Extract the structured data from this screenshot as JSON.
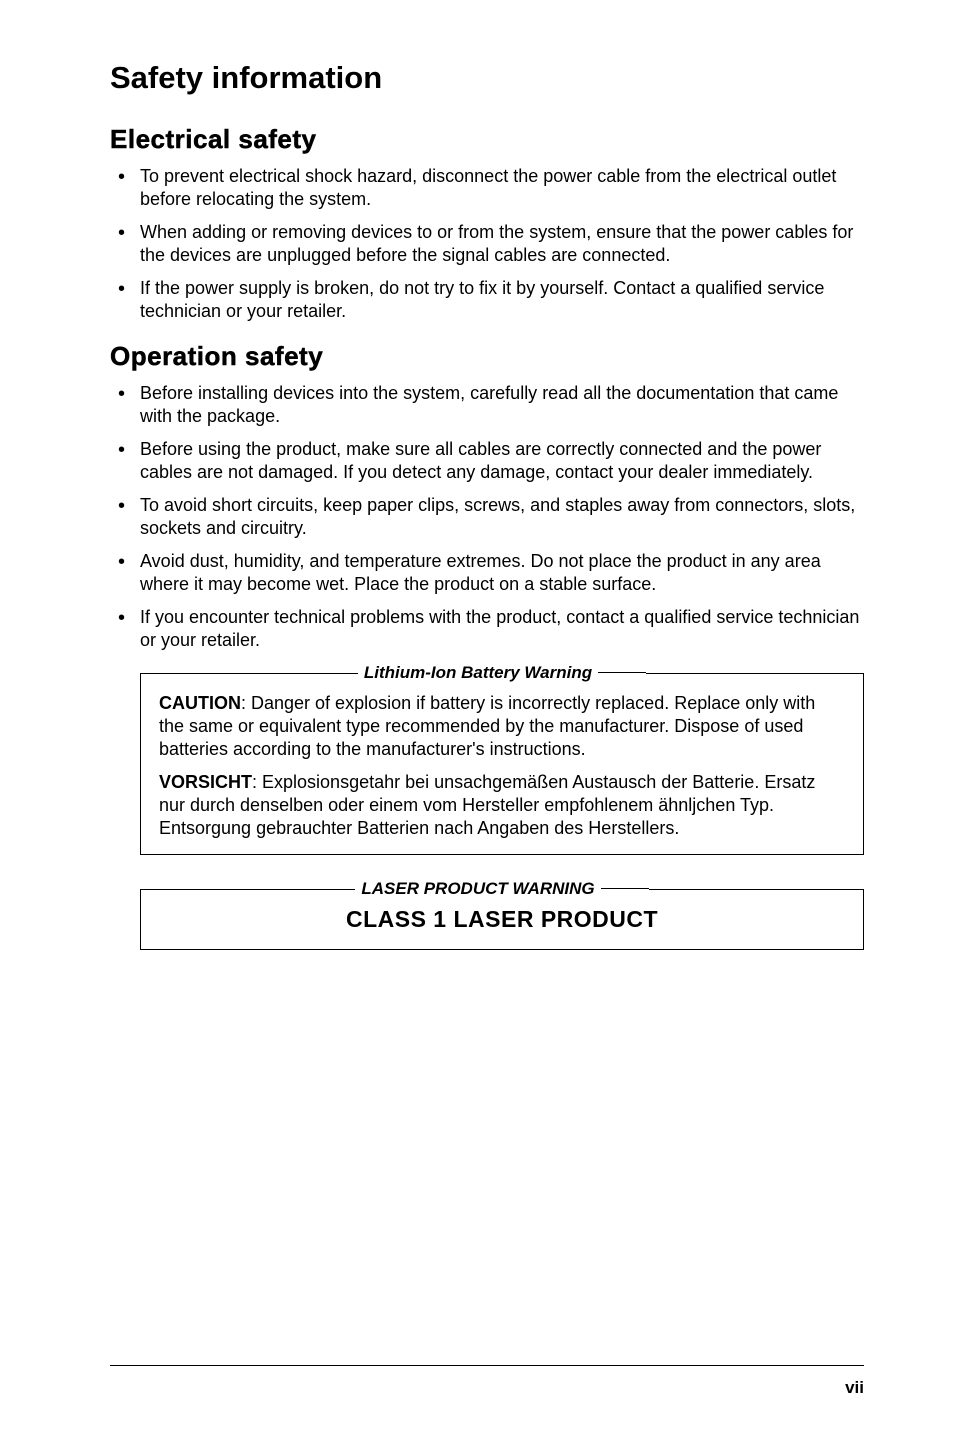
{
  "page": {
    "title": "Safety information",
    "footer": "vii",
    "background_color": "#ffffff",
    "text_color": "#000000",
    "font_family": "Tahoma, Verdana, Arial, sans-serif",
    "title_fontsize": 31,
    "section_fontsize": 26,
    "body_fontsize": 18
  },
  "section1": {
    "title": "Electrical safety",
    "items": [
      "To prevent electrical shock hazard, disconnect the power cable from the electrical outlet before relocating the system.",
      "When adding or removing devices to or from the system, ensure that the power cables for the devices are unplugged before the signal cables are connected.",
      "If the power supply is broken, do not try to fix it by yourself. Contact a qualified service technician or your retailer."
    ]
  },
  "section2": {
    "title": "Operation safety",
    "items": [
      "Before installing devices into the system, carefully read all the documentation that came with the package.",
      "Before using the product, make sure all cables are correctly connected and the power cables are not damaged. If you detect any damage, contact your dealer immediately.",
      "To avoid short circuits, keep paper clips, screws, and staples away from connectors, slots, sockets and circuitry.",
      "Avoid dust, humidity, and temperature extremes. Do not place the product in any area where it may become wet. Place the product on a stable surface.",
      "If you encounter technical problems with the product, contact a qualified service technician or your retailer."
    ]
  },
  "callout1": {
    "heading": "Lithium-Ion Battery Warning",
    "para1_bold": "CAUTION",
    "para1_text": ": Danger of explosion if battery is incorrectly replaced. Replace only with the same or equivalent type recommended by the manufacturer. Dispose of used batteries according to the manufacturer's instructions.",
    "para2_bold": "VORSICHT",
    "para2_text": ": Explosionsgetahr bei unsachgemäßen Austausch der Batterie. Ersatz nur durch denselben oder einem vom Hersteller empfohlenem ähnljchen Typ. Entsorgung gebrauchter Batterien nach Angaben des Herstellers."
  },
  "callout2": {
    "heading": "LASER PRODUCT WARNING",
    "class_text": "CLASS 1 LASER PRODUCT"
  },
  "styles": {
    "border_color": "#000000",
    "border_width": 1.5,
    "heading_line_width": 48,
    "bullet_glyph": "•"
  }
}
